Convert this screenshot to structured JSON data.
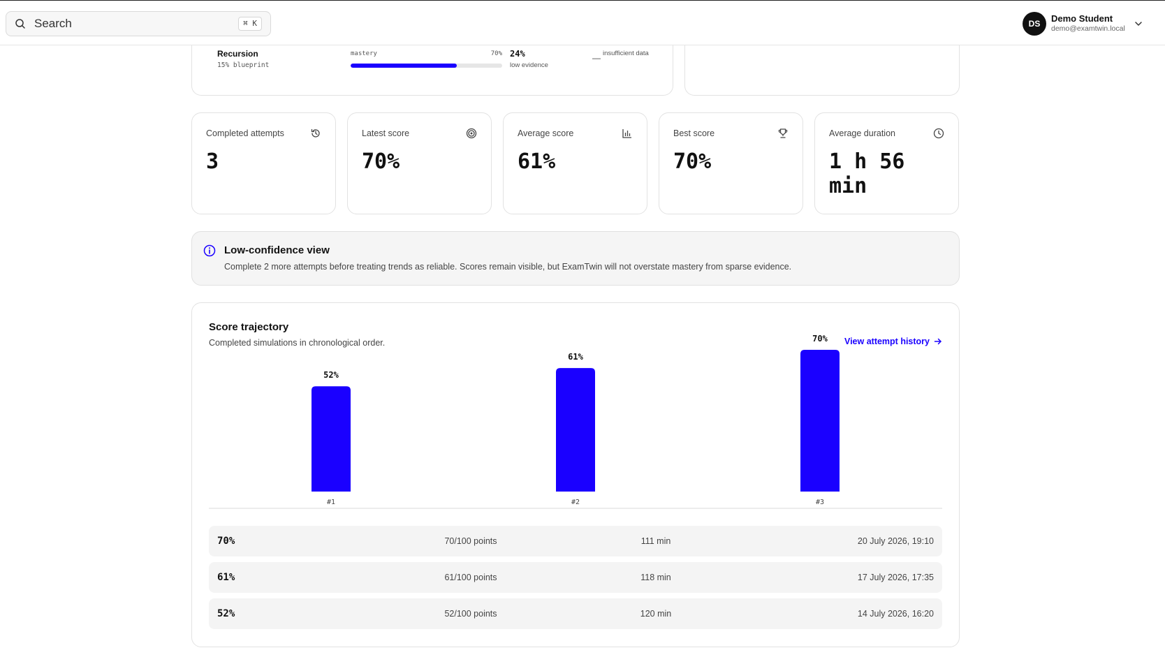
{
  "topbar": {
    "search_placeholder": "Search",
    "search_shortcut": "⌘ K",
    "user": {
      "initials": "DS",
      "name": "Demo Student",
      "email": "demo@examtwin.local"
    }
  },
  "topic": {
    "name": "Recursion",
    "weight": "15% blueprint",
    "metric_label": "mastery",
    "metric_value": "70%",
    "mastery_fraction": 0.7,
    "evidence_value": "24%",
    "evidence_label": "low evidence",
    "status_dash": "—",
    "status": "insufficient data"
  },
  "stats": [
    {
      "label": "Completed attempts",
      "value": "3",
      "icon": "history-icon"
    },
    {
      "label": "Latest score",
      "value": "70%",
      "icon": "target-icon"
    },
    {
      "label": "Average score",
      "value": "61%",
      "icon": "bar-chart-icon"
    },
    {
      "label": "Best score",
      "value": "70%",
      "icon": "trophy-icon"
    },
    {
      "label": "Average duration",
      "value": "1 h 56 min",
      "icon": "clock-icon"
    }
  ],
  "banner": {
    "title": "Low-confidence view",
    "text": "Complete 2 more attempts before treating trends as reliable. Scores remain visible, but ExamTwin will not overstate mastery from sparse evidence."
  },
  "trajectory": {
    "title": "Score trajectory",
    "subtitle": "Completed simulations in chronological order.",
    "link": "View attempt history"
  },
  "chart_data": {
    "type": "bar",
    "categories": [
      "#1",
      "#2",
      "#3"
    ],
    "values": [
      52,
      61,
      70
    ],
    "value_labels": [
      "52%",
      "61%",
      "70%"
    ],
    "ylim": [
      0,
      100
    ],
    "color": "#1a00ff"
  },
  "attempts": [
    {
      "score": "70%",
      "points": "70/100 points",
      "duration": "111 min",
      "date": "20 July 2026, 19:10"
    },
    {
      "score": "61%",
      "points": "61/100 points",
      "duration": "118 min",
      "date": "17 July 2026, 17:35"
    },
    {
      "score": "52%",
      "points": "52/100 points",
      "duration": "120 min",
      "date": "14 July 2026, 16:20"
    }
  ]
}
